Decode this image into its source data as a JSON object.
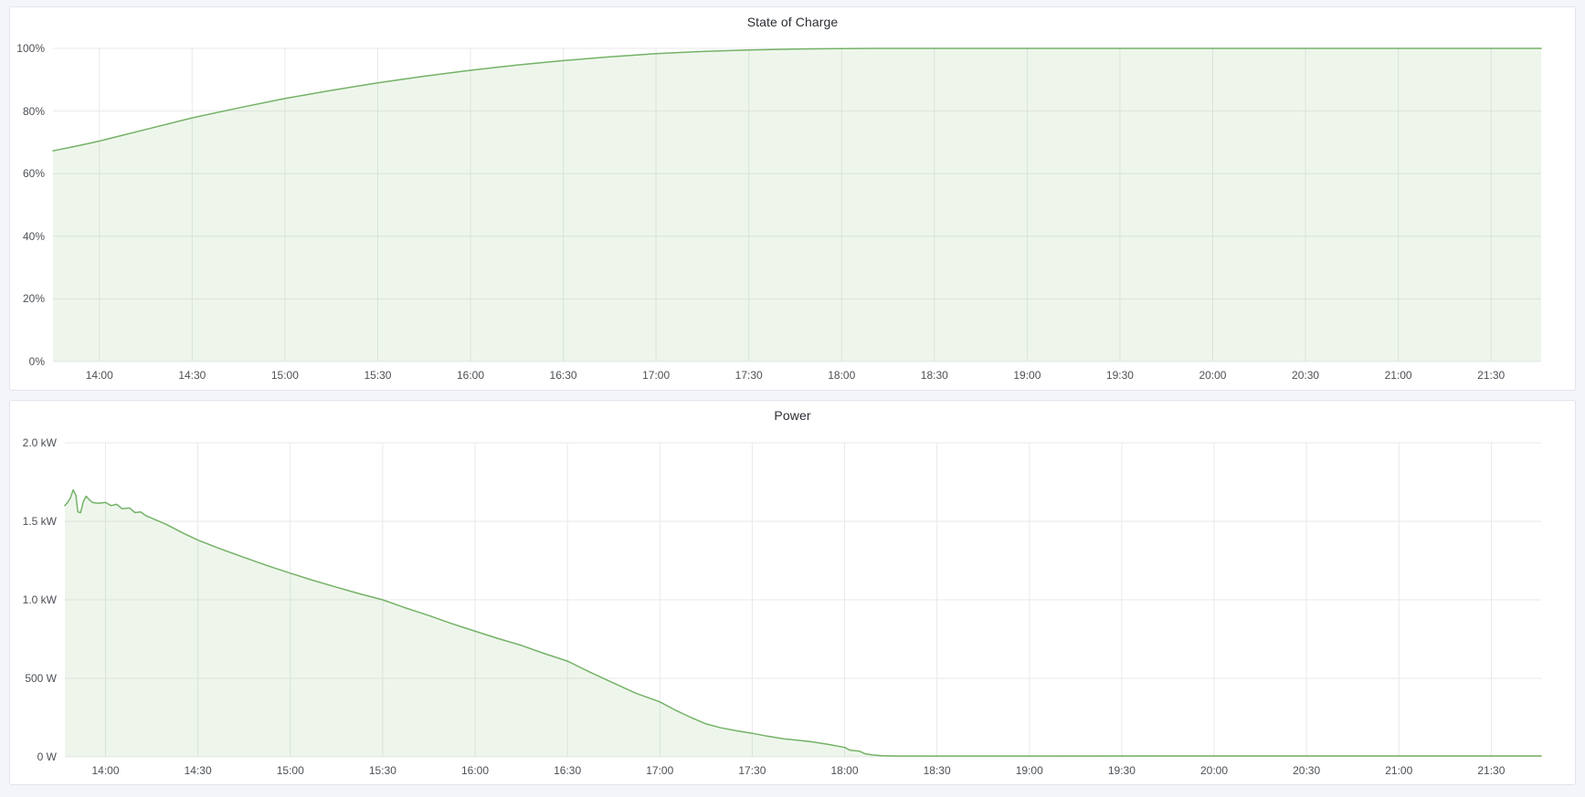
{
  "page": {
    "background": "#f4f5f9"
  },
  "colors": {
    "line": "#74b266",
    "fill": "rgba(116,178,102,0.12)",
    "grid": "#e8e9ec",
    "axis_text": "#4c5056",
    "panel_bg": "#ffffff",
    "panel_border": "#e2e4ed",
    "title_text": "#2b2f34"
  },
  "panels": [
    {
      "title": "State of Charge"
    },
    {
      "title": "Power"
    }
  ],
  "chart_data": [
    {
      "type": "area",
      "title": "State of Charge",
      "xlabel": "",
      "ylabel": "",
      "x_axis": "time",
      "time_range_hours": [
        13.75,
        21.77
      ],
      "xlim": [
        13.75,
        21.77
      ],
      "ylim": [
        0,
        100
      ],
      "grid": true,
      "legend": "none",
      "y_ticks": [
        {
          "value": 0,
          "label": "0%"
        },
        {
          "value": 20,
          "label": "20%"
        },
        {
          "value": 40,
          "label": "40%"
        },
        {
          "value": 60,
          "label": "60%"
        },
        {
          "value": 80,
          "label": "80%"
        },
        {
          "value": 100,
          "label": "100%"
        }
      ],
      "x_ticks": [
        {
          "value": 14.0,
          "label": "14:00"
        },
        {
          "value": 14.5,
          "label": "14:30"
        },
        {
          "value": 15.0,
          "label": "15:00"
        },
        {
          "value": 15.5,
          "label": "15:30"
        },
        {
          "value": 16.0,
          "label": "16:00"
        },
        {
          "value": 16.5,
          "label": "16:30"
        },
        {
          "value": 17.0,
          "label": "17:00"
        },
        {
          "value": 17.5,
          "label": "17:30"
        },
        {
          "value": 18.0,
          "label": "18:00"
        },
        {
          "value": 18.5,
          "label": "18:30"
        },
        {
          "value": 19.0,
          "label": "19:00"
        },
        {
          "value": 19.5,
          "label": "19:30"
        },
        {
          "value": 20.0,
          "label": "20:00"
        },
        {
          "value": 20.5,
          "label": "20:30"
        },
        {
          "value": 21.0,
          "label": "21:00"
        },
        {
          "value": 21.5,
          "label": "21:30"
        }
      ],
      "series": [
        {
          "name": "State of Charge (%)",
          "points": [
            [
              13.75,
              67.3
            ],
            [
              13.9,
              69.1
            ],
            [
              14.0,
              70.4
            ],
            [
              14.25,
              74.1
            ],
            [
              14.5,
              77.8
            ],
            [
              14.75,
              81.0
            ],
            [
              15.0,
              84.0
            ],
            [
              15.25,
              86.6
            ],
            [
              15.5,
              89.0
            ],
            [
              15.75,
              91.1
            ],
            [
              16.0,
              93.0
            ],
            [
              16.25,
              94.7
            ],
            [
              16.5,
              96.1
            ],
            [
              16.75,
              97.3
            ],
            [
              17.0,
              98.3
            ],
            [
              17.25,
              99.0
            ],
            [
              17.5,
              99.5
            ],
            [
              17.75,
              99.8
            ],
            [
              18.0,
              99.95
            ],
            [
              18.17,
              100
            ],
            [
              21.77,
              100
            ]
          ]
        }
      ]
    },
    {
      "type": "area",
      "title": "Power",
      "xlabel": "",
      "ylabel": "",
      "x_axis": "time",
      "time_range_hours": [
        13.78,
        21.77
      ],
      "xlim": [
        13.78,
        21.77
      ],
      "ylim": [
        0,
        2000
      ],
      "grid": true,
      "legend": "none",
      "y_ticks": [
        {
          "value": 0,
          "label": "0 W"
        },
        {
          "value": 500,
          "label": "500 W"
        },
        {
          "value": 1000,
          "label": "1.0 kW"
        },
        {
          "value": 1500,
          "label": "1.5 kW"
        },
        {
          "value": 2000,
          "label": "2.0 kW"
        }
      ],
      "x_ticks": [
        {
          "value": 14.0,
          "label": "14:00"
        },
        {
          "value": 14.5,
          "label": "14:30"
        },
        {
          "value": 15.0,
          "label": "15:00"
        },
        {
          "value": 15.5,
          "label": "15:30"
        },
        {
          "value": 16.0,
          "label": "16:00"
        },
        {
          "value": 16.5,
          "label": "16:30"
        },
        {
          "value": 17.0,
          "label": "17:00"
        },
        {
          "value": 17.5,
          "label": "17:30"
        },
        {
          "value": 18.0,
          "label": "18:00"
        },
        {
          "value": 18.5,
          "label": "18:30"
        },
        {
          "value": 19.0,
          "label": "19:00"
        },
        {
          "value": 19.5,
          "label": "19:30"
        },
        {
          "value": 20.0,
          "label": "20:00"
        },
        {
          "value": 20.5,
          "label": "20:30"
        },
        {
          "value": 21.0,
          "label": "21:00"
        },
        {
          "value": 21.5,
          "label": "21:30"
        }
      ],
      "series": [
        {
          "name": "Power (W)",
          "points": [
            [
              13.78,
              1600
            ],
            [
              13.795,
              1620
            ],
            [
              13.81,
              1650
            ],
            [
              13.825,
              1700
            ],
            [
              13.84,
              1665
            ],
            [
              13.85,
              1560
            ],
            [
              13.865,
              1555
            ],
            [
              13.88,
              1625
            ],
            [
              13.895,
              1660
            ],
            [
              13.91,
              1640
            ],
            [
              13.93,
              1620
            ],
            [
              13.96,
              1615
            ],
            [
              14.0,
              1620
            ],
            [
              14.03,
              1600
            ],
            [
              14.06,
              1608
            ],
            [
              14.09,
              1580
            ],
            [
              14.13,
              1585
            ],
            [
              14.16,
              1555
            ],
            [
              14.19,
              1560
            ],
            [
              14.22,
              1535
            ],
            [
              14.25,
              1520
            ],
            [
              14.33,
              1480
            ],
            [
              14.42,
              1425
            ],
            [
              14.5,
              1380
            ],
            [
              14.62,
              1325
            ],
            [
              14.75,
              1270
            ],
            [
              14.87,
              1220
            ],
            [
              15.0,
              1170
            ],
            [
              15.12,
              1125
            ],
            [
              15.25,
              1080
            ],
            [
              15.37,
              1040
            ],
            [
              15.5,
              1000
            ],
            [
              15.62,
              950
            ],
            [
              15.75,
              900
            ],
            [
              15.87,
              850
            ],
            [
              16.0,
              800
            ],
            [
              16.12,
              755
            ],
            [
              16.25,
              710
            ],
            [
              16.37,
              660
            ],
            [
              16.5,
              610
            ],
            [
              16.62,
              540
            ],
            [
              16.75,
              470
            ],
            [
              16.87,
              405
            ],
            [
              17.0,
              350
            ],
            [
              17.08,
              300
            ],
            [
              17.17,
              250
            ],
            [
              17.25,
              210
            ],
            [
              17.33,
              185
            ],
            [
              17.42,
              165
            ],
            [
              17.5,
              150
            ],
            [
              17.58,
              132
            ],
            [
              17.67,
              115
            ],
            [
              17.75,
              105
            ],
            [
              17.83,
              95
            ],
            [
              17.92,
              78
            ],
            [
              18.0,
              60
            ],
            [
              18.03,
              42
            ],
            [
              18.08,
              36
            ],
            [
              18.11,
              20
            ],
            [
              18.15,
              12
            ],
            [
              18.2,
              7
            ],
            [
              18.3,
              5
            ],
            [
              21.77,
              6
            ]
          ]
        }
      ]
    }
  ]
}
